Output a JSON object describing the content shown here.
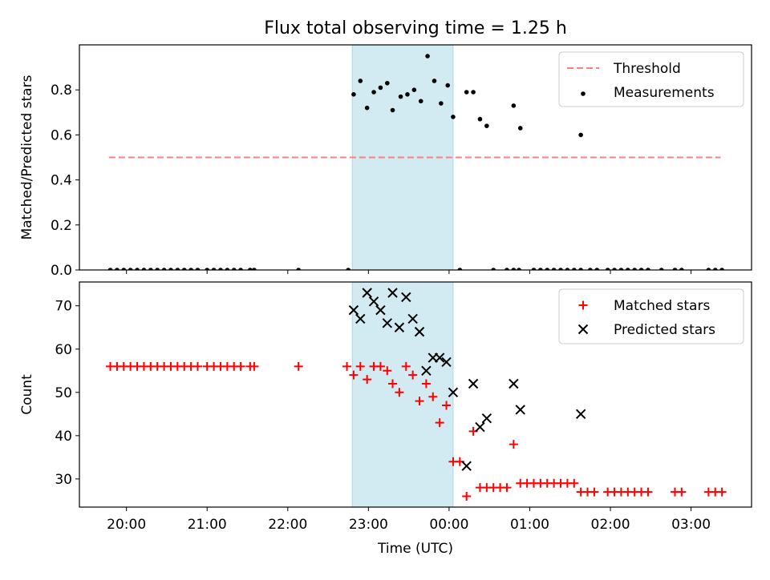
{
  "title": "Flux total observing time = 1.25 h",
  "colors": {
    "threshold": "#ff7f7f",
    "measurements": "#000000",
    "matched": "#ff0000",
    "predicted": "#000000",
    "span": "#add8e6"
  },
  "chart_data": [
    {
      "type": "scatter",
      "ylabel": "Matched/Predicted stars",
      "ylim": [
        0,
        1.0
      ],
      "yticks": [
        "0.0",
        "0.2",
        "0.4",
        "0.6",
        "0.8"
      ],
      "xlim": [
        "19:25",
        "03:45"
      ],
      "shaded_span": [
        "22:48",
        "00:03"
      ],
      "legend_position": "top-right",
      "legend": [
        "Threshold",
        "Measurements"
      ],
      "threshold": {
        "name": "Threshold",
        "y": 0.5,
        "x_range": [
          "19:47",
          "03:22"
        ],
        "style": "dashed"
      },
      "series": [
        {
          "name": "Measurements",
          "points": [
            [
              "19:48",
              0
            ],
            [
              "19:53",
              0
            ],
            [
              "19:58",
              0
            ],
            [
              "20:03",
              0
            ],
            [
              "20:08",
              0
            ],
            [
              "20:13",
              0
            ],
            [
              "20:18",
              0
            ],
            [
              "20:23",
              0
            ],
            [
              "20:28",
              0
            ],
            [
              "20:33",
              0
            ],
            [
              "20:38",
              0
            ],
            [
              "20:43",
              0
            ],
            [
              "20:48",
              0
            ],
            [
              "20:53",
              0
            ],
            [
              "21:00",
              0
            ],
            [
              "21:05",
              0
            ],
            [
              "21:10",
              0
            ],
            [
              "21:15",
              0
            ],
            [
              "21:20",
              0
            ],
            [
              "21:25",
              0
            ],
            [
              "21:32",
              0
            ],
            [
              "21:35",
              0
            ],
            [
              "22:08",
              0
            ],
            [
              "22:45",
              0
            ],
            [
              "22:49",
              0.78
            ],
            [
              "22:54",
              0.84
            ],
            [
              "22:59",
              0.72
            ],
            [
              "23:04",
              0.79
            ],
            [
              "23:09",
              0.81
            ],
            [
              "23:14",
              0.83
            ],
            [
              "23:18",
              0.71
            ],
            [
              "23:24",
              0.77
            ],
            [
              "23:29",
              0.78
            ],
            [
              "23:34",
              0.8
            ],
            [
              "23:39",
              0.75
            ],
            [
              "23:44",
              0.95
            ],
            [
              "23:49",
              0.84
            ],
            [
              "23:54",
              0.74
            ],
            [
              "23:59",
              0.82
            ],
            [
              "00:03",
              0.68
            ],
            [
              "00:08",
              0
            ],
            [
              "00:13",
              0.79
            ],
            [
              "00:18",
              0.79
            ],
            [
              "00:23",
              0.67
            ],
            [
              "00:28",
              0.64
            ],
            [
              "00:33",
              0
            ],
            [
              "00:43",
              0
            ],
            [
              "00:48",
              0
            ],
            [
              "00:52",
              0
            ],
            [
              "00:48",
              0.73
            ],
            [
              "00:53",
              0.63
            ],
            [
              "01:03",
              0
            ],
            [
              "01:08",
              0
            ],
            [
              "01:13",
              0
            ],
            [
              "01:18",
              0
            ],
            [
              "01:23",
              0
            ],
            [
              "01:28",
              0
            ],
            [
              "01:33",
              0
            ],
            [
              "01:38",
              0
            ],
            [
              "01:45",
              0
            ],
            [
              "01:50",
              0
            ],
            [
              "01:58",
              0
            ],
            [
              "02:03",
              0
            ],
            [
              "02:08",
              0
            ],
            [
              "02:13",
              0
            ],
            [
              "02:18",
              0
            ],
            [
              "02:23",
              0
            ],
            [
              "02:28",
              0
            ],
            [
              "02:38",
              0
            ],
            [
              "02:48",
              0
            ],
            [
              "02:53",
              0
            ],
            [
              "03:13",
              0
            ],
            [
              "03:18",
              0
            ],
            [
              "03:23",
              0
            ],
            [
              "01:38",
              0.6
            ]
          ]
        }
      ]
    },
    {
      "type": "scatter",
      "xlabel": "Time (UTC)",
      "ylabel": "Count",
      "ylim": [
        23.5,
        75.5
      ],
      "yticks": [
        "30",
        "40",
        "50",
        "60",
        "70"
      ],
      "xlim": [
        "19:25",
        "03:45"
      ],
      "xticks": [
        "20:00",
        "21:00",
        "22:00",
        "23:00",
        "00:00",
        "01:00",
        "02:00",
        "03:00"
      ],
      "shaded_span": [
        "22:48",
        "00:03"
      ],
      "legend_position": "top-right",
      "legend": [
        "Matched stars",
        "Predicted stars"
      ],
      "series": [
        {
          "name": "Matched stars",
          "points": [
            [
              "19:48",
              56
            ],
            [
              "19:53",
              56
            ],
            [
              "19:58",
              56
            ],
            [
              "20:03",
              56
            ],
            [
              "20:08",
              56
            ],
            [
              "20:13",
              56
            ],
            [
              "20:18",
              56
            ],
            [
              "20:23",
              56
            ],
            [
              "20:28",
              56
            ],
            [
              "20:33",
              56
            ],
            [
              "20:38",
              56
            ],
            [
              "20:43",
              56
            ],
            [
              "20:48",
              56
            ],
            [
              "20:53",
              56
            ],
            [
              "21:00",
              56
            ],
            [
              "21:05",
              56
            ],
            [
              "21:10",
              56
            ],
            [
              "21:15",
              56
            ],
            [
              "21:20",
              56
            ],
            [
              "21:25",
              56
            ],
            [
              "21:32",
              56
            ],
            [
              "21:35",
              56
            ],
            [
              "22:08",
              56
            ],
            [
              "22:44",
              56
            ],
            [
              "22:49",
              54
            ],
            [
              "22:54",
              56
            ],
            [
              "22:59",
              53
            ],
            [
              "23:04",
              56
            ],
            [
              "23:09",
              56
            ],
            [
              "23:14",
              55
            ],
            [
              "23:18",
              52
            ],
            [
              "23:23",
              50
            ],
            [
              "23:28",
              56
            ],
            [
              "23:33",
              54
            ],
            [
              "23:38",
              48
            ],
            [
              "23:43",
              52
            ],
            [
              "23:48",
              49
            ],
            [
              "23:53",
              43
            ],
            [
              "23:58",
              47
            ],
            [
              "00:03",
              34
            ],
            [
              "00:08",
              34
            ],
            [
              "00:13",
              26
            ],
            [
              "00:18",
              41
            ],
            [
              "00:23",
              28
            ],
            [
              "00:28",
              28
            ],
            [
              "00:33",
              28
            ],
            [
              "00:38",
              28
            ],
            [
              "00:43",
              28
            ],
            [
              "00:48",
              38
            ],
            [
              "00:53",
              29
            ],
            [
              "00:58",
              29
            ],
            [
              "01:03",
              29
            ],
            [
              "01:08",
              29
            ],
            [
              "01:13",
              29
            ],
            [
              "01:18",
              29
            ],
            [
              "01:23",
              29
            ],
            [
              "01:28",
              29
            ],
            [
              "01:33",
              29
            ],
            [
              "01:38",
              27
            ],
            [
              "01:43",
              27
            ],
            [
              "01:48",
              27
            ],
            [
              "01:58",
              27
            ],
            [
              "02:03",
              27
            ],
            [
              "02:08",
              27
            ],
            [
              "02:13",
              27
            ],
            [
              "02:18",
              27
            ],
            [
              "02:23",
              27
            ],
            [
              "02:28",
              27
            ],
            [
              "02:48",
              27
            ],
            [
              "02:53",
              27
            ],
            [
              "03:13",
              27
            ],
            [
              "03:18",
              27
            ],
            [
              "03:23",
              27
            ]
          ]
        },
        {
          "name": "Predicted stars",
          "points": [
            [
              "22:49",
              69
            ],
            [
              "22:54",
              67
            ],
            [
              "22:59",
              73
            ],
            [
              "23:04",
              71
            ],
            [
              "23:09",
              69
            ],
            [
              "23:14",
              66
            ],
            [
              "23:18",
              73
            ],
            [
              "23:23",
              65
            ],
            [
              "23:28",
              72
            ],
            [
              "23:33",
              67
            ],
            [
              "23:38",
              64
            ],
            [
              "23:43",
              55
            ],
            [
              "23:48",
              58
            ],
            [
              "23:53",
              58
            ],
            [
              "23:58",
              57
            ],
            [
              "00:03",
              50
            ],
            [
              "00:13",
              33
            ],
            [
              "00:18",
              52
            ],
            [
              "00:23",
              42
            ],
            [
              "00:28",
              44
            ],
            [
              "00:48",
              52
            ],
            [
              "00:53",
              46
            ],
            [
              "01:38",
              45
            ]
          ]
        }
      ]
    }
  ]
}
